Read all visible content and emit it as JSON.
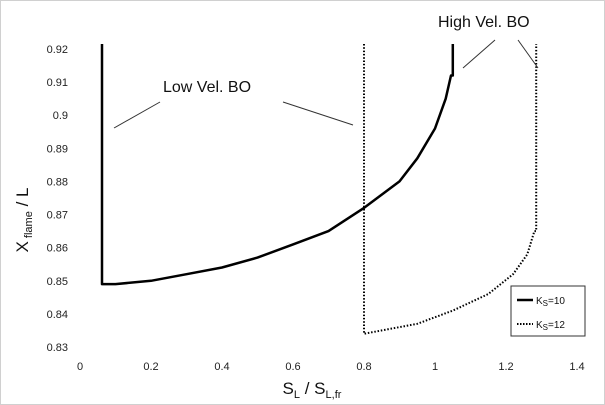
{
  "chart_data": {
    "type": "line",
    "xlim": [
      0,
      1.4
    ],
    "ylim": [
      0.83,
      0.925
    ],
    "x_ticks": [
      "0",
      "0.2",
      "0.4",
      "0.6",
      "0.8",
      "1",
      "1.2",
      "1.4"
    ],
    "y_ticks": [
      "0.83",
      "0.84",
      "0.85",
      "0.86",
      "0.87",
      "0.88",
      "0.89",
      "0.9",
      "0.91",
      "0.92"
    ],
    "xlabel": {
      "main": "S",
      "sub1": "L",
      "mid": " / S",
      "sub2": "L,fr"
    },
    "ylabel": {
      "main": "X",
      "sub": " flame",
      "tail": " / L"
    },
    "grid": false,
    "legend_position": "bottom-right",
    "annotations": [
      "Low Vel. BO",
      "High Vel. BO"
    ],
    "series": [
      {
        "name": "Ks=10",
        "legend_main": "K",
        "legend_sub": "S",
        "legend_tail": "=10",
        "style": "solid",
        "x": [
          0.062,
          0.062,
          0.1,
          0.2,
          0.3,
          0.4,
          0.5,
          0.6,
          0.7,
          0.8,
          0.9,
          0.95,
          1.0,
          1.03,
          1.045,
          1.05,
          1.05
        ],
        "y": [
          0.925,
          0.849,
          0.849,
          0.85,
          0.852,
          0.854,
          0.857,
          0.861,
          0.865,
          0.872,
          0.88,
          0.887,
          0.896,
          0.905,
          0.912,
          0.912,
          0.925
        ]
      },
      {
        "name": "Ks=12",
        "legend_main": "K",
        "legend_sub": "S",
        "legend_tail": "=12",
        "style": "dotted",
        "x": [
          0.8,
          0.8,
          0.85,
          0.95,
          1.05,
          1.15,
          1.22,
          1.26,
          1.28,
          1.285,
          1.285
        ],
        "y": [
          0.925,
          0.834,
          0.835,
          0.837,
          0.841,
          0.846,
          0.852,
          0.858,
          0.865,
          0.865,
          0.925
        ]
      }
    ]
  }
}
